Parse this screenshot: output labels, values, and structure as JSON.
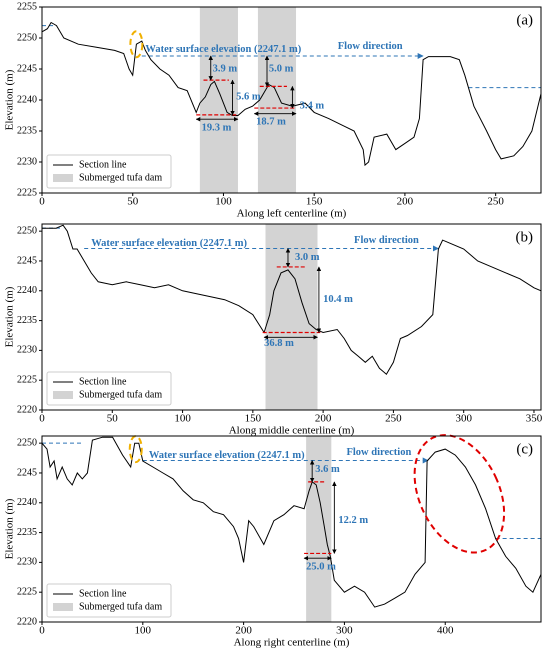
{
  "chart_data": [
    {
      "type": "line",
      "panel_label": "(a)",
      "xlabel": "Along left centerline (m)",
      "ylabel": "Elevation (m)",
      "xlim": [
        0,
        275
      ],
      "ylim": [
        2225,
        2255
      ],
      "xticks": [
        0,
        50,
        100,
        150,
        200,
        250
      ],
      "yticks": [
        2225,
        2230,
        2235,
        2240,
        2245,
        2250,
        2255
      ],
      "x": [
        0,
        3,
        5,
        8,
        12,
        20,
        30,
        40,
        45,
        48,
        50,
        52,
        55,
        57,
        60,
        65,
        70,
        75,
        80,
        85,
        87,
        90,
        93,
        95,
        98,
        102,
        105,
        108,
        112,
        116,
        120,
        125,
        128,
        132,
        138,
        145,
        150,
        158,
        165,
        172,
        177,
        178,
        180,
        183,
        190,
        195,
        200,
        205,
        208,
        210,
        213,
        225,
        230,
        233,
        238,
        245,
        250,
        253,
        260,
        265,
        270,
        275
      ],
      "series": [
        {
          "name": "Section line",
          "color": "#000000",
          "values": [
            2251,
            2251.5,
            2252.5,
            2252,
            2250,
            2249,
            2248.5,
            2248,
            2247.5,
            2245,
            2244,
            2249,
            2249.5,
            2248,
            2246.5,
            2245,
            2244,
            2242,
            2241.5,
            2238,
            2239.5,
            2240.5,
            2242.5,
            2243,
            2241,
            2238,
            2237.5,
            2237.5,
            2238.5,
            2239,
            2240,
            2242.5,
            2242,
            2239.5,
            2239,
            2239.5,
            2238,
            2237,
            2236,
            2235,
            2232,
            2229.5,
            2230,
            2234,
            2234.5,
            2232,
            2233,
            2234,
            2237,
            2246.5,
            2247,
            2247,
            2246.5,
            2244,
            2239,
            2235,
            2232,
            2230.5,
            2231,
            2232.5,
            2235,
            2241
          ]
        }
      ],
      "dam": {
        "name": "Submerged tufa dam",
        "color": "#d3d3d3",
        "spans": [
          [
            87,
            108
          ],
          [
            119,
            140
          ]
        ]
      },
      "water": {
        "label": "Water surface elevation (2247.1 m)",
        "value": 2247.1,
        "xlim": [
          55,
          210
        ],
        "color": "#2e75b6"
      },
      "flow_label": "Flow direction",
      "other_levels": [
        {
          "value": 2252,
          "xlim": [
            0,
            8
          ]
        },
        {
          "value": 2242,
          "xlim": [
            235,
            275
          ]
        }
      ],
      "annotations": [
        "3.9 m",
        "5.6 m",
        "19.3 m",
        "5.0 m",
        "3.4 m",
        "18.7 m"
      ]
    },
    {
      "type": "line",
      "panel_label": "(b)",
      "xlabel": "Along middle centerline (m)",
      "ylabel": "Elevation (m)",
      "xlim": [
        0,
        355
      ],
      "ylim": [
        2220,
        2251.2
      ],
      "xticks": [
        0,
        50,
        100,
        150,
        200,
        250,
        300,
        350
      ],
      "yticks": [
        2220,
        2225,
        2230,
        2235,
        2240,
        2245,
        2250
      ],
      "x": [
        0,
        10,
        15,
        18,
        22,
        25,
        30,
        35,
        40,
        50,
        60,
        70,
        80,
        90,
        100,
        110,
        120,
        130,
        140,
        150,
        158,
        162,
        165,
        170,
        175,
        180,
        185,
        190,
        195,
        200,
        210,
        215,
        220,
        225,
        230,
        235,
        240,
        245,
        250,
        255,
        260,
        270,
        278,
        282,
        285,
        290,
        300,
        310,
        320,
        330,
        340,
        350,
        355
      ],
      "series": [
        {
          "name": "Section line",
          "color": "#000000",
          "values": [
            2250.5,
            2250.5,
            2251,
            2250,
            2247,
            2247,
            2245,
            2243,
            2241.5,
            2241,
            2241.5,
            2241,
            2240.5,
            2241,
            2240,
            2239.5,
            2239,
            2238.5,
            2237.5,
            2236,
            2233,
            2236,
            2240,
            2243,
            2243.5,
            2242,
            2238,
            2234.5,
            2233.5,
            2233,
            2233.5,
            2232,
            2230,
            2229,
            2228,
            2229,
            2227,
            2226,
            2228,
            2232,
            2232.5,
            2234,
            2236,
            2247,
            2248.5,
            2248,
            2247,
            2245,
            2244,
            2243,
            2242,
            2240.5,
            2240
          ]
        }
      ],
      "dam": {
        "name": "Submerged tufa dam",
        "color": "#d3d3d3",
        "spans": [
          [
            159,
            196
          ]
        ]
      },
      "water": {
        "label": "Water surface elevation (2247.1 m)",
        "value": 2247.1,
        "xlim": [
          30,
          282
        ],
        "color": "#2e75b6"
      },
      "flow_label": "Flow direction",
      "other_levels": [
        {
          "value": 2250.5,
          "xlim": [
            0,
            15
          ]
        }
      ],
      "annotations": [
        "3.0 m",
        "10.4 m",
        "36.8 m"
      ]
    },
    {
      "type": "line",
      "panel_label": "(c)",
      "xlabel": "Along right centerline (m)",
      "ylabel": "Elevation (m)",
      "xlim": [
        0,
        495
      ],
      "ylim": [
        2220,
        2251.2
      ],
      "xticks": [
        0,
        100,
        200,
        300,
        400
      ],
      "yticks": [
        2220,
        2225,
        2230,
        2235,
        2240,
        2245,
        2250
      ],
      "x": [
        0,
        5,
        8,
        12,
        15,
        20,
        25,
        30,
        35,
        40,
        45,
        50,
        60,
        70,
        80,
        88,
        92,
        96,
        100,
        110,
        120,
        130,
        140,
        150,
        160,
        170,
        180,
        190,
        195,
        200,
        205,
        210,
        220,
        230,
        240,
        250,
        260,
        265,
        268,
        272,
        276,
        280,
        283,
        286,
        290,
        300,
        310,
        320,
        330,
        340,
        350,
        360,
        370,
        380,
        382,
        390,
        400,
        410,
        420,
        430,
        440,
        450,
        460,
        470,
        480,
        487,
        495
      ],
      "series": [
        {
          "name": "Section line",
          "color": "#000000",
          "values": [
            2250,
            2249,
            2246,
            2247,
            2244,
            2246,
            2244,
            2243,
            2245,
            2244,
            2245,
            2250.5,
            2251,
            2251,
            2248,
            2246,
            2250,
            2250,
            2247,
            2246,
            2245,
            2244,
            2242,
            2240.5,
            2240,
            2238.5,
            2238,
            2236,
            2234,
            2230,
            2237,
            2236,
            2233,
            2237,
            2238,
            2239.5,
            2239,
            2242,
            2243.5,
            2243,
            2240,
            2236,
            2233,
            2231,
            2227,
            2225,
            2226,
            2225,
            2222.5,
            2223,
            2224,
            2225,
            2228,
            2230,
            2247,
            2248.5,
            2249,
            2248,
            2246,
            2243,
            2239,
            2234,
            2231,
            2229,
            2226,
            2225,
            2228
          ]
        }
      ],
      "dam": {
        "name": "Submerged tufa dam",
        "color": "#d3d3d3",
        "spans": [
          [
            262,
            287
          ]
        ]
      },
      "water": {
        "label": "Water surface elevation (2247.1 m)",
        "value": 2247.1,
        "xlim": [
          100,
          383
        ],
        "color": "#2e75b6"
      },
      "flow_label": "Flow direction",
      "other_levels": [
        {
          "value": 2250,
          "xlim": [
            0,
            40
          ]
        },
        {
          "value": 2234,
          "xlim": [
            450,
            495
          ]
        }
      ],
      "annotations": [
        "3.6 m",
        "12.2 m",
        "25.0 m"
      ]
    }
  ]
}
